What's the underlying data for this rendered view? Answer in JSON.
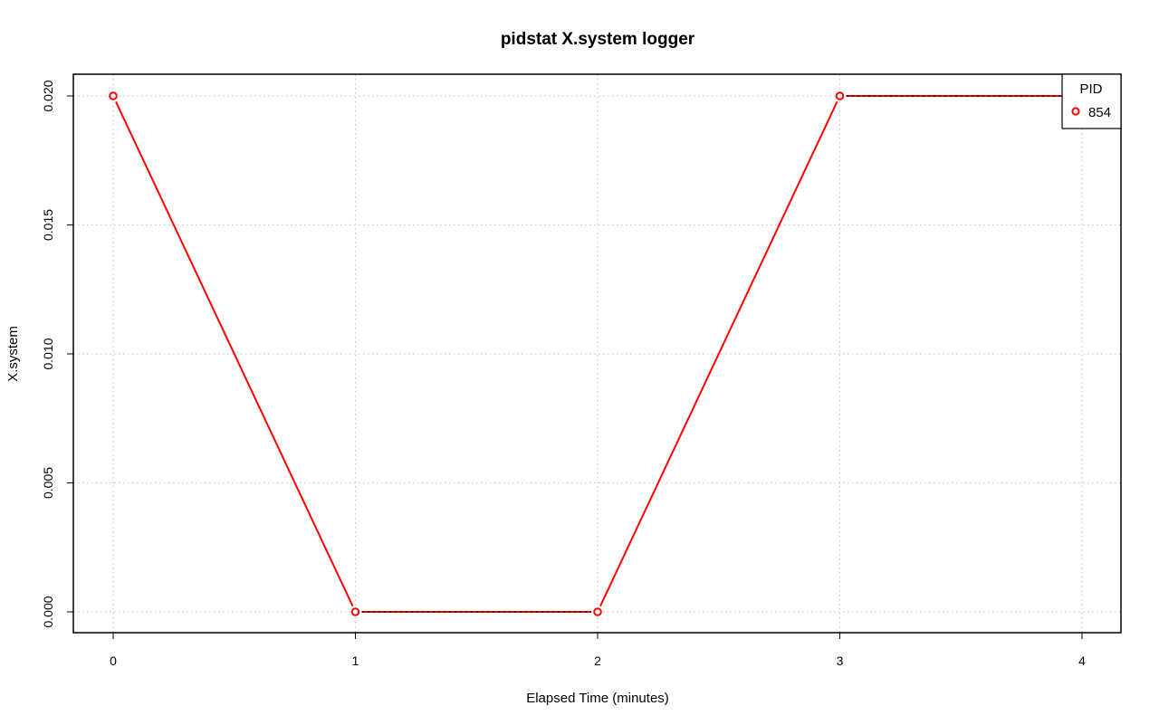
{
  "chart_data": {
    "type": "line",
    "title": "pidstat X.system logger",
    "xlabel": "Elapsed Time (minutes)",
    "ylabel": "X.system",
    "x": [
      0,
      1,
      2,
      3,
      4
    ],
    "series": [
      {
        "name": "854",
        "values": [
          0.02,
          0.0,
          0.0,
          0.02,
          0.02
        ],
        "color": "#ff0000"
      }
    ],
    "xlim": [
      0,
      4
    ],
    "ylim": [
      0,
      0.02
    ],
    "x_ticks": [
      "0",
      "1",
      "2",
      "3",
      "4"
    ],
    "y_ticks": [
      "0.000",
      "0.005",
      "0.010",
      "0.015",
      "0.020"
    ],
    "y_tick_values": [
      0,
      0.005,
      0.01,
      0.015,
      0.02
    ],
    "grid": true,
    "legend": {
      "title": "PID",
      "position": "top-right"
    }
  }
}
